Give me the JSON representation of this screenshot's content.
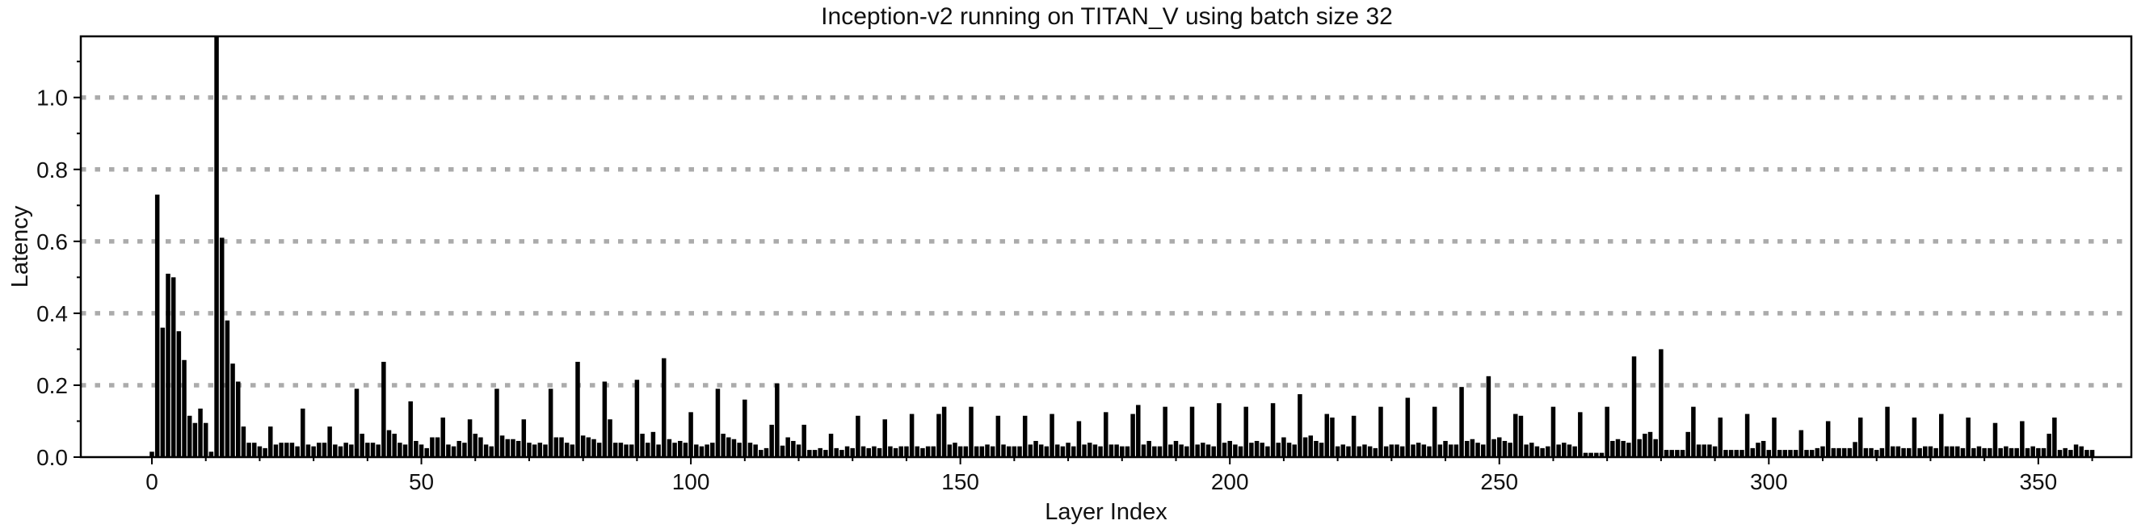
{
  "title": "Inception-v2 running on TITAN_V using batch size 32",
  "chart_data": {
    "type": "bar",
    "title": "Inception-v2 running on TITAN_V using batch size 32",
    "xlabel": "Layer Index",
    "ylabel": "Latency",
    "bar_color": "#000000",
    "grid_color": "#ababab",
    "axis_color": "#000000",
    "grid_on": true,
    "legend": "none",
    "xlim": [
      -13,
      367
    ],
    "ylim": [
      0,
      1.17
    ],
    "x_ticks": [
      "0",
      "50",
      "100",
      "150",
      "200",
      "250",
      "300",
      "350"
    ],
    "x_tick_values": [
      0,
      50,
      100,
      150,
      200,
      250,
      300,
      350
    ],
    "y_ticks": [
      "0.0",
      "0.2",
      "0.4",
      "0.6",
      "0.8",
      "1.0"
    ],
    "y_tick_values": [
      0.0,
      0.2,
      0.4,
      0.6,
      0.8,
      1.0
    ],
    "x_start": 0,
    "clipped_bar_index": 12,
    "values": [
      0.015,
      0.73,
      0.36,
      0.51,
      0.5,
      0.35,
      0.27,
      0.115,
      0.095,
      0.135,
      0.095,
      0.015,
      1.18,
      0.61,
      0.38,
      0.26,
      0.21,
      0.085,
      0.04,
      0.04,
      0.03,
      0.025,
      0.085,
      0.035,
      0.04,
      0.04,
      0.04,
      0.03,
      0.135,
      0.035,
      0.03,
      0.04,
      0.04,
      0.085,
      0.035,
      0.03,
      0.04,
      0.035,
      0.19,
      0.065,
      0.04,
      0.04,
      0.035,
      0.265,
      0.075,
      0.065,
      0.04,
      0.035,
      0.155,
      0.045,
      0.035,
      0.025,
      0.055,
      0.055,
      0.11,
      0.035,
      0.03,
      0.045,
      0.04,
      0.105,
      0.065,
      0.055,
      0.035,
      0.03,
      0.19,
      0.06,
      0.05,
      0.05,
      0.045,
      0.105,
      0.04,
      0.035,
      0.04,
      0.035,
      0.19,
      0.055,
      0.055,
      0.04,
      0.035,
      0.265,
      0.06,
      0.055,
      0.05,
      0.04,
      0.21,
      0.105,
      0.04,
      0.04,
      0.035,
      0.035,
      0.215,
      0.065,
      0.04,
      0.07,
      0.035,
      0.275,
      0.05,
      0.04,
      0.045,
      0.04,
      0.125,
      0.035,
      0.03,
      0.035,
      0.04,
      0.19,
      0.065,
      0.055,
      0.05,
      0.04,
      0.16,
      0.04,
      0.035,
      0.02,
      0.025,
      0.09,
      0.205,
      0.032,
      0.055,
      0.045,
      0.035,
      0.09,
      0.02,
      0.02,
      0.025,
      0.02,
      0.065,
      0.025,
      0.02,
      0.03,
      0.025,
      0.115,
      0.03,
      0.025,
      0.03,
      0.025,
      0.105,
      0.03,
      0.025,
      0.03,
      0.03,
      0.12,
      0.03,
      0.025,
      0.03,
      0.03,
      0.12,
      0.14,
      0.035,
      0.04,
      0.03,
      0.03,
      0.14,
      0.03,
      0.03,
      0.035,
      0.03,
      0.115,
      0.035,
      0.03,
      0.03,
      0.03,
      0.115,
      0.035,
      0.045,
      0.035,
      0.03,
      0.12,
      0.035,
      0.03,
      0.04,
      0.03,
      0.1,
      0.035,
      0.04,
      0.035,
      0.03,
      0.125,
      0.035,
      0.035,
      0.03,
      0.03,
      0.12,
      0.145,
      0.035,
      0.045,
      0.03,
      0.03,
      0.14,
      0.035,
      0.045,
      0.035,
      0.03,
      0.14,
      0.035,
      0.04,
      0.035,
      0.03,
      0.15,
      0.04,
      0.045,
      0.035,
      0.03,
      0.14,
      0.04,
      0.045,
      0.04,
      0.03,
      0.15,
      0.04,
      0.055,
      0.04,
      0.035,
      0.175,
      0.055,
      0.06,
      0.045,
      0.04,
      0.12,
      0.11,
      0.03,
      0.035,
      0.03,
      0.115,
      0.03,
      0.035,
      0.03,
      0.025,
      0.14,
      0.03,
      0.035,
      0.035,
      0.03,
      0.165,
      0.035,
      0.04,
      0.035,
      0.03,
      0.14,
      0.035,
      0.045,
      0.035,
      0.035,
      0.195,
      0.045,
      0.05,
      0.04,
      0.035,
      0.225,
      0.05,
      0.055,
      0.045,
      0.04,
      0.12,
      0.115,
      0.035,
      0.04,
      0.03,
      0.025,
      0.03,
      0.14,
      0.035,
      0.04,
      0.035,
      0.03,
      0.125,
      0.012,
      0.012,
      0.012,
      0.012,
      0.14,
      0.045,
      0.05,
      0.045,
      0.04,
      0.28,
      0.05,
      0.065,
      0.07,
      0.05,
      0.3,
      0.02,
      0.02,
      0.02,
      0.02,
      0.07,
      0.14,
      0.035,
      0.035,
      0.035,
      0.03,
      0.11,
      0.02,
      0.02,
      0.02,
      0.02,
      0.12,
      0.025,
      0.04,
      0.045,
      0.02,
      0.11,
      0.02,
      0.02,
      0.02,
      0.02,
      0.075,
      0.02,
      0.02,
      0.025,
      0.03,
      0.1,
      0.025,
      0.025,
      0.025,
      0.025,
      0.042,
      0.11,
      0.025,
      0.025,
      0.02,
      0.025,
      0.14,
      0.03,
      0.03,
      0.025,
      0.025,
      0.11,
      0.025,
      0.03,
      0.03,
      0.025,
      0.12,
      0.03,
      0.03,
      0.03,
      0.025,
      0.11,
      0.025,
      0.03,
      0.025,
      0.025,
      0.095,
      0.025,
      0.03,
      0.025,
      0.025,
      0.1,
      0.025,
      0.03,
      0.025,
      0.025,
      0.065,
      0.11,
      0.02,
      0.025,
      0.02,
      0.035,
      0.03,
      0.02,
      0.02
    ]
  }
}
